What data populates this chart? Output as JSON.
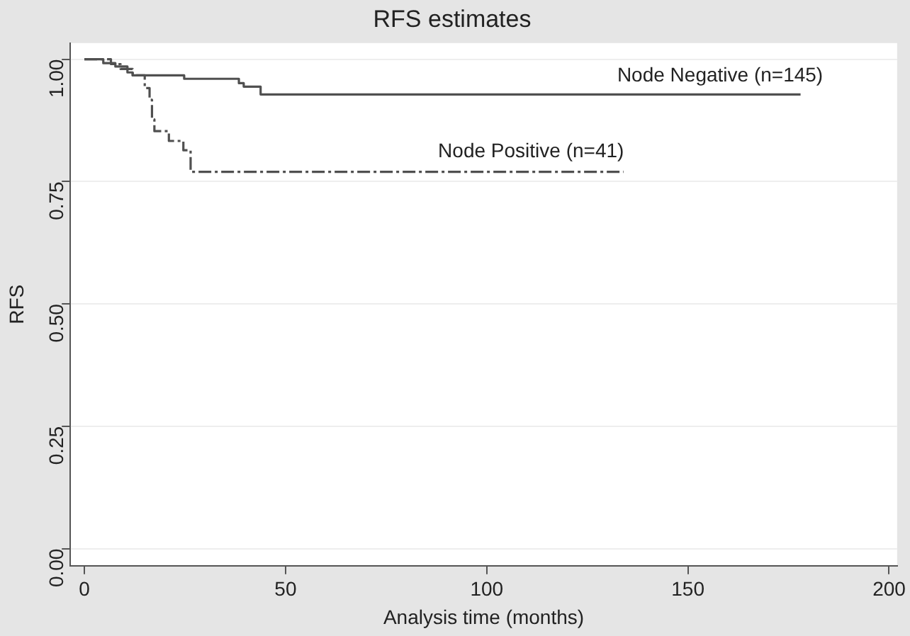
{
  "chart_data": {
    "type": "step",
    "title": "RFS estimates",
    "xlabel": "Analysis time (months)",
    "ylabel": "RFS",
    "xlim": [
      -3.5,
      202
    ],
    "xticks": [
      0,
      50,
      100,
      150,
      200
    ],
    "ylim": [
      -0.035,
      1.033
    ],
    "yticks": [
      {
        "value": 0,
        "label": "0.00"
      },
      {
        "value": 0.25,
        "label": "0.25"
      },
      {
        "value": 0.5,
        "label": "0.50"
      },
      {
        "value": 0.75,
        "label": "0.75"
      },
      {
        "value": 1,
        "label": "1.00"
      }
    ],
    "grid": "y",
    "legend": false,
    "marker": "none",
    "series": [
      {
        "color": "#505050",
        "line_style": "solid",
        "x": [
          0,
          4.7,
          7.7,
          10.7,
          12,
          24.8,
          38.4,
          39.6,
          43.8,
          178
        ],
        "values": [
          1,
          0.992,
          0.985,
          0.973,
          0.967,
          0.96,
          0.951,
          0.944,
          0.928,
          0.928
        ]
      },
      {
        "color": "#505050",
        "line_style": "dashed",
        "x": [
          0,
          6.6,
          9,
          12,
          15,
          16.2,
          16.8,
          17.4,
          21,
          24.6,
          26.4,
          134
        ],
        "values": [
          1,
          0.99,
          0.98,
          0.967,
          0.941,
          0.917,
          0.877,
          0.853,
          0.833,
          0.814,
          0.77,
          0.77
        ]
      }
    ],
    "annotations": [
      {
        "text": "Node Negative (n=145)",
        "x": 158,
        "y": 0.94
      },
      {
        "text": "Node Positive (n=41)",
        "x": 111,
        "y": 0.785
      }
    ]
  }
}
